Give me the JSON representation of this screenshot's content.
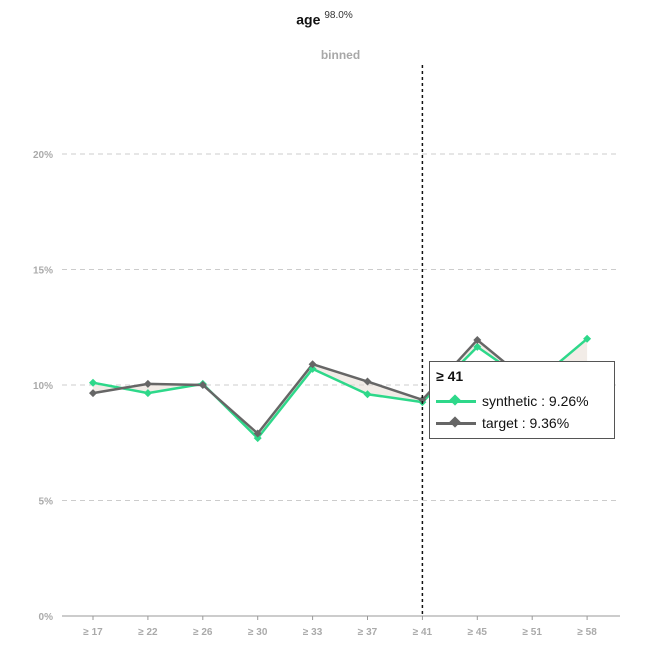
{
  "title": "age",
  "title_sup": "98.0%",
  "subtitle": "binned",
  "chart_data": {
    "type": "line",
    "title": "age",
    "subtitle": "binned",
    "categories": [
      "≥ 17",
      "≥ 22",
      "≥ 26",
      "≥ 30",
      "≥ 33",
      "≥ 37",
      "≥ 41",
      "≥ 45",
      "≥ 51",
      "≥ 58"
    ],
    "series": [
      {
        "name": "synthetic",
        "color": "#2ed88a",
        "values": [
          10.1,
          9.65,
          10.05,
          7.7,
          10.7,
          9.6,
          9.26,
          11.65,
          10.0,
          12.0
        ]
      },
      {
        "name": "target",
        "color": "#666666",
        "values": [
          9.65,
          10.05,
          10.0,
          7.9,
          10.9,
          10.15,
          9.36,
          11.95,
          10.0,
          10.2
        ]
      }
    ],
    "ylim": [
      0,
      20
    ],
    "yticks": [
      "0%",
      "5%",
      "10%",
      "15%",
      "20%"
    ],
    "ytick_values": [
      0,
      5,
      10,
      15,
      20
    ],
    "grid": true,
    "highlight_category": "≥ 41",
    "fill_between": true
  },
  "tooltip": {
    "header": "≥ 41",
    "rows": [
      {
        "label": "synthetic : 9.26%",
        "color": "#2ed88a"
      },
      {
        "label": "target : 9.36%",
        "color": "#666666"
      }
    ]
  }
}
